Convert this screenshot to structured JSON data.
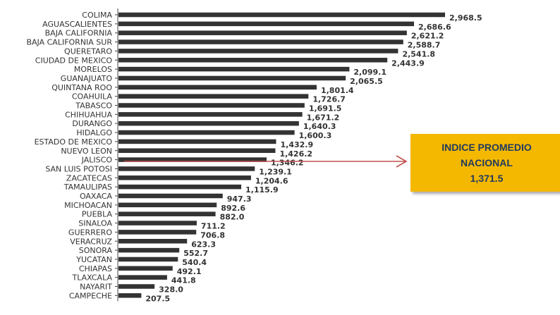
{
  "chart_data": {
    "type": "bar",
    "orientation": "horizontal",
    "categories": [
      "COLIMA",
      "AGUASCALIENTES",
      "BAJA CALIFORNIA",
      "BAJA CALIFORNIA SUR",
      "QUERETARO",
      "CIUDAD DE MEXICO",
      "MORELOS",
      "GUANAJUATO",
      "QUINTANA ROO",
      "COAHUILA",
      "TABASCO",
      "CHIHUAHUA",
      "DURANGO",
      "HIDALGO",
      "ESTADO DE MEXICO",
      "NUEVO LEON",
      "JALISCO",
      "SAN LUIS POTOSI",
      "ZACATECAS",
      "TAMAULIPAS",
      "OAXACA",
      "MICHOACAN",
      "PUEBLA",
      "SINALOA",
      "GUERRERO",
      "VERACRUZ",
      "SONORA",
      "YUCATAN",
      "CHIAPAS",
      "TLAXCALA",
      "NAYARIT",
      "CAMPECHE"
    ],
    "values": [
      2968.5,
      2686.6,
      2621.2,
      2588.7,
      2541.8,
      2443.9,
      2099.1,
      2065.5,
      1801.4,
      1726.7,
      1691.5,
      1671.2,
      1640.3,
      1600.3,
      1432.9,
      1426.2,
      1346.2,
      1239.1,
      1204.6,
      1115.9,
      947.3,
      892.6,
      882.0,
      711.2,
      706.8,
      623.3,
      552.7,
      540.4,
      492.1,
      441.8,
      328.0,
      207.5
    ],
    "value_labels": [
      "2,968.5",
      "2,686.6",
      "2,621.2",
      "2,588.7",
      "2,541.8",
      "2,443.9",
      "2,099.1",
      "2,065.5",
      "1,801.4",
      "1,726.7",
      "1,691.5",
      "1,671.2",
      "1,640.3",
      "1,600.3",
      "1,432.9",
      "1,426.2",
      "1,346.2",
      "1,239.1",
      "1,204.6",
      "1,115.9",
      "947.3",
      "892.6",
      "882.0",
      "711.2",
      "706.8",
      "623.3",
      "552.7",
      "540.4",
      "492.1",
      "441.8",
      "328.0",
      "207.5"
    ],
    "bar_color": "#333333",
    "reference_line": {
      "value": 1371.5,
      "color": "#c0504d",
      "label_lines": [
        "INDICE PROMEDIO",
        "NACIONAL",
        "1,371.5"
      ],
      "label_bg": "#f5b800",
      "label_color": "#1f3a5f"
    },
    "xlim": [
      0,
      3000
    ]
  }
}
